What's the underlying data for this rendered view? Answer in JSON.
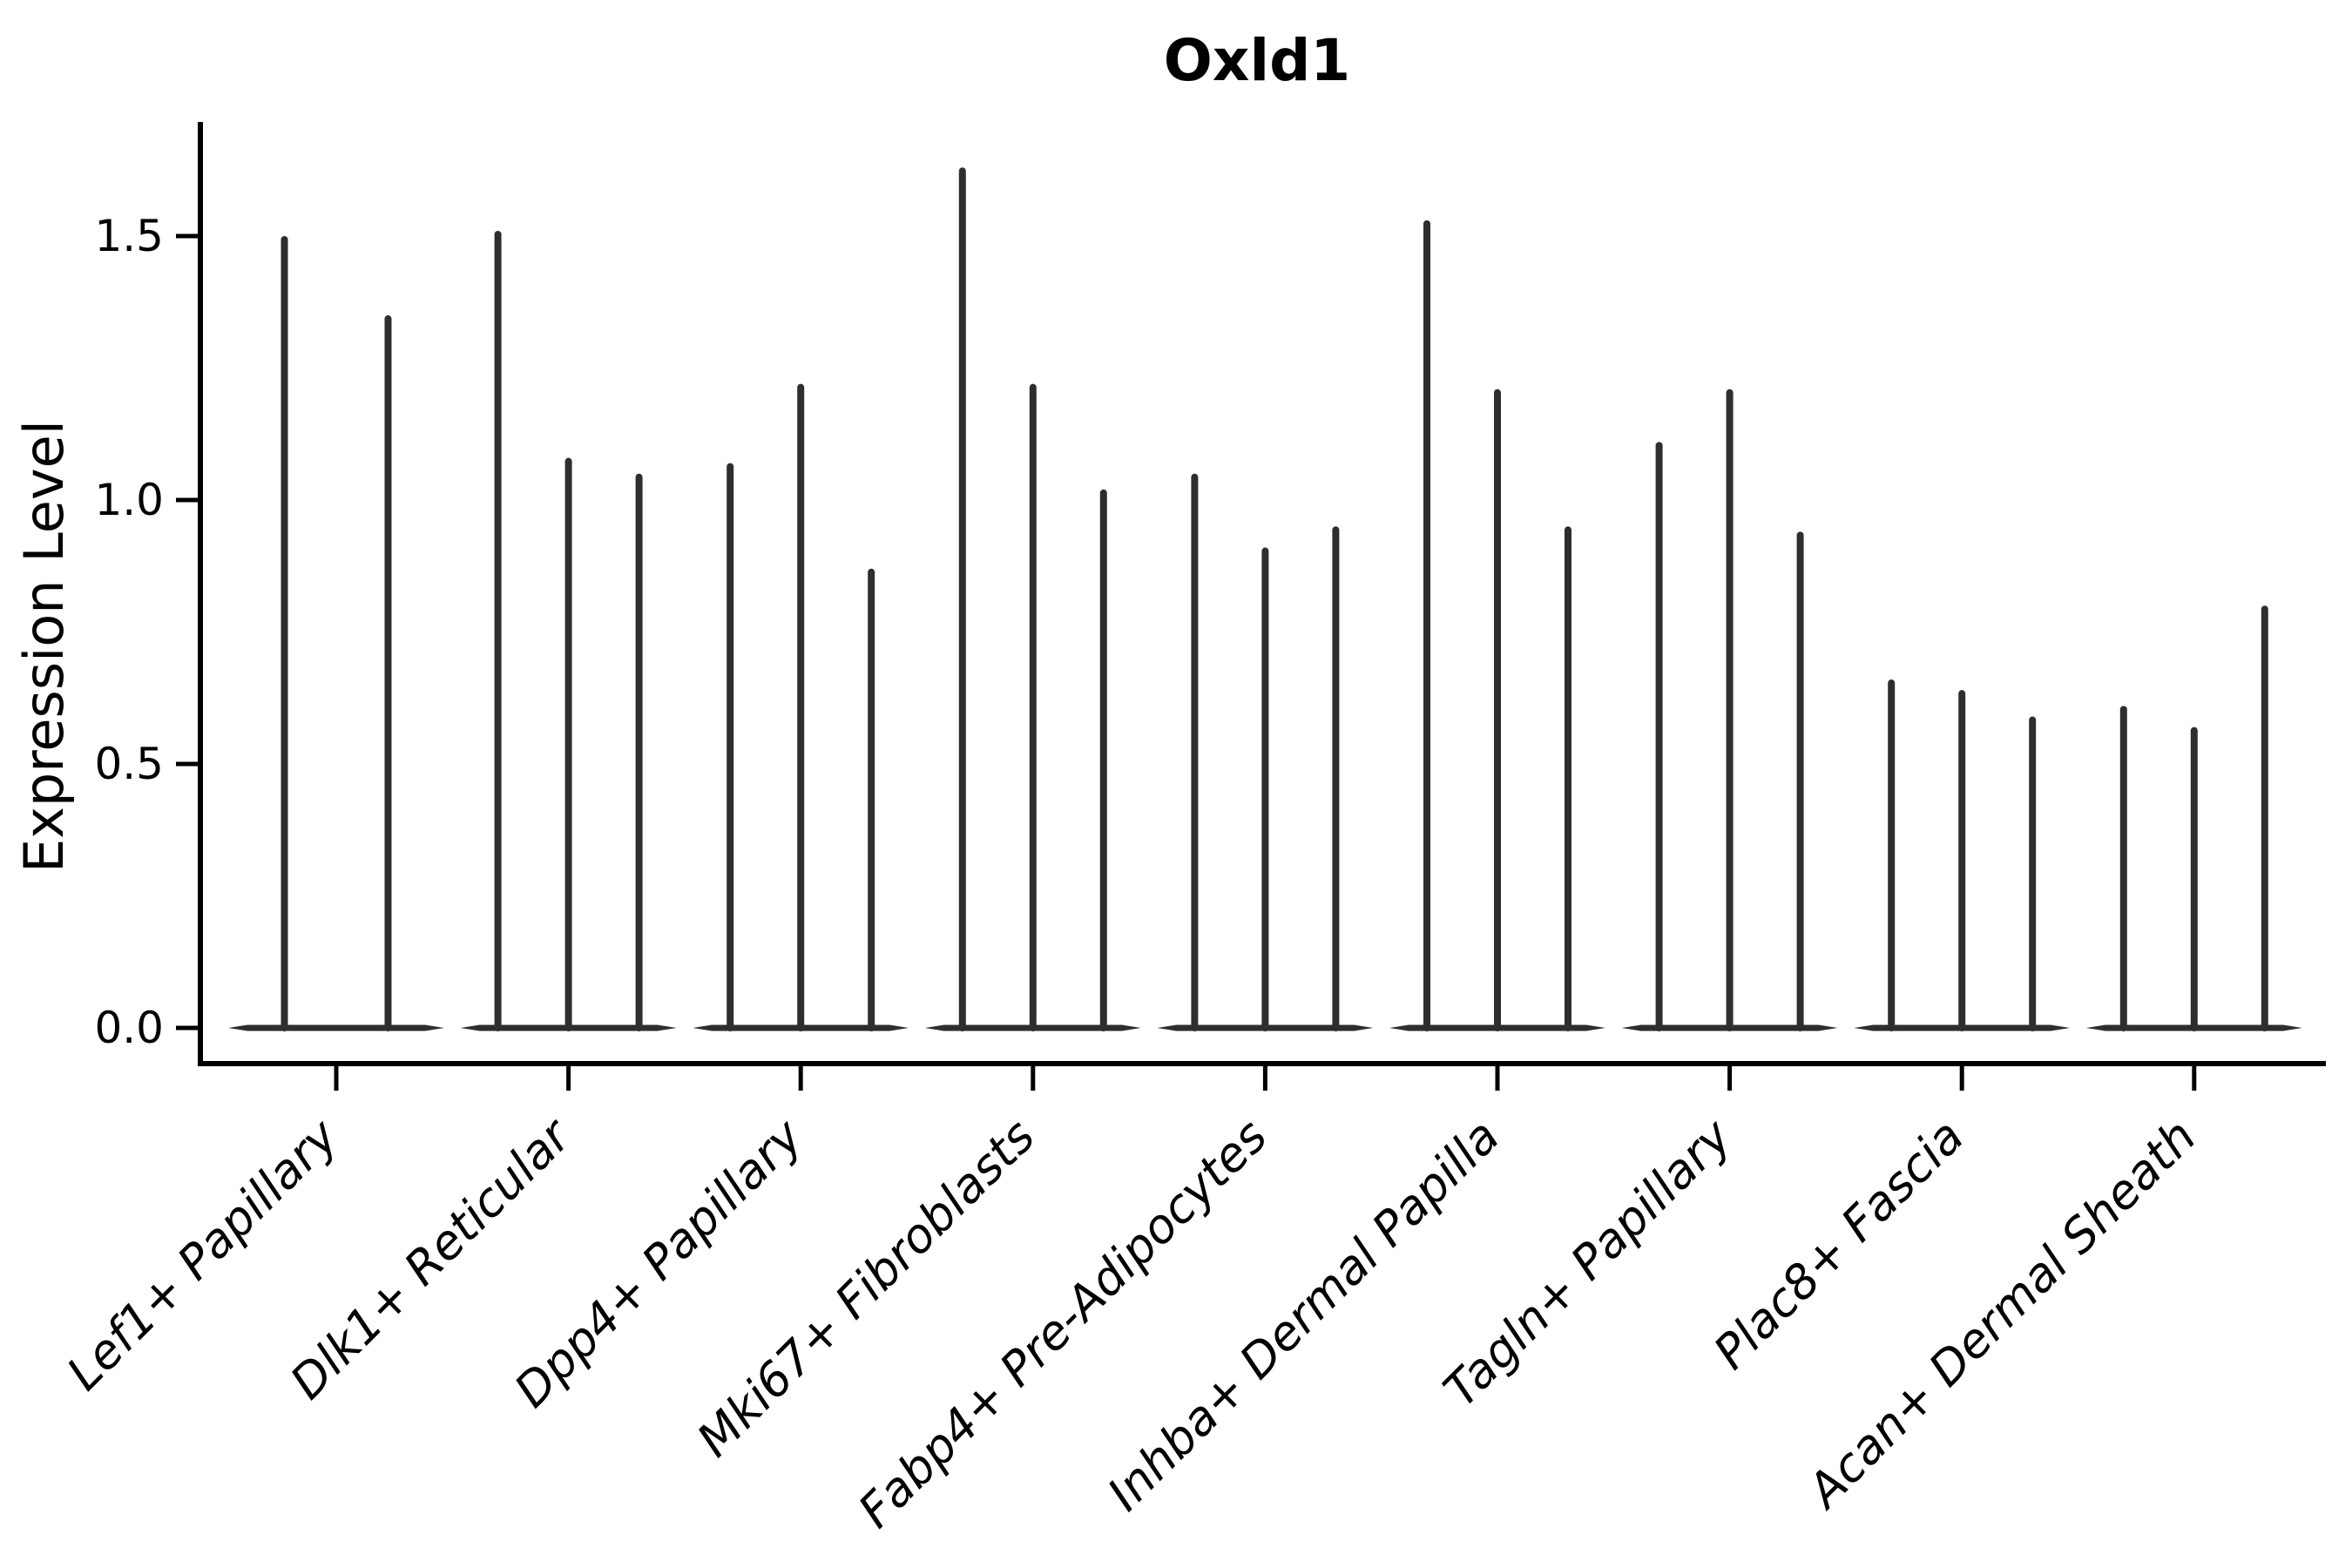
{
  "chart_data": {
    "type": "violin",
    "title": "Oxld1",
    "xlabel": "",
    "ylabel": "Expression Level",
    "ylim": [
      0,
      1.72
    ],
    "yticks": [
      {
        "label": "0.0",
        "value": 0.0
      },
      {
        "label": "0.5",
        "value": 0.5
      },
      {
        "label": "1.0",
        "value": 1.0
      },
      {
        "label": "1.5",
        "value": 1.5
      }
    ],
    "grid": false,
    "legend": "none",
    "note": "Single-cell expression violin plot: each violin is a mostly-zero distribution drawn as a flat base at 0 with one thin spike reaching its maximum expression value; categories hold 2-3 violins each.",
    "categories": [
      "Lef1+ Papillary",
      "Dlk1+ Reticular",
      "Dpp4+ Papillary",
      "Mki67+ Fibroblasts",
      "Fabp4+ Pre-Adipocytes",
      "Inhba+ Dermal Papilla",
      "Tagln+ Papillary",
      "Plac8+ Fascia",
      "Acan+ Dermal Sheath"
    ],
    "series": [
      {
        "category": "Lef1+ Papillary",
        "violin_spike_maxima": [
          1.5,
          1.35
        ]
      },
      {
        "category": "Dlk1+ Reticular",
        "violin_spike_maxima": [
          1.51,
          1.08,
          1.05
        ]
      },
      {
        "category": "Dpp4+ Papillary",
        "violin_spike_maxima": [
          1.07,
          1.22,
          0.87
        ]
      },
      {
        "category": "Mki67+ Fibroblasts",
        "violin_spike_maxima": [
          1.63,
          1.22,
          1.02
        ]
      },
      {
        "category": "Fabp4+ Pre-Adipocytes",
        "violin_spike_maxima": [
          1.05,
          0.91,
          0.95
        ]
      },
      {
        "category": "Inhba+ Dermal Papilla",
        "violin_spike_maxima": [
          1.53,
          1.21,
          0.95
        ]
      },
      {
        "category": "Tagln+ Papillary",
        "violin_spike_maxima": [
          1.11,
          1.21,
          0.94
        ]
      },
      {
        "category": "Plac8+ Fascia",
        "violin_spike_maxima": [
          0.66,
          0.64,
          0.59
        ]
      },
      {
        "category": "Acan+ Dermal Sheath",
        "violin_spike_maxima": [
          0.61,
          0.57,
          0.8
        ]
      }
    ],
    "colors": {
      "violin": "#2e2e2e",
      "axis": "#000000",
      "text": "#000000",
      "background": "#ffffff"
    }
  }
}
